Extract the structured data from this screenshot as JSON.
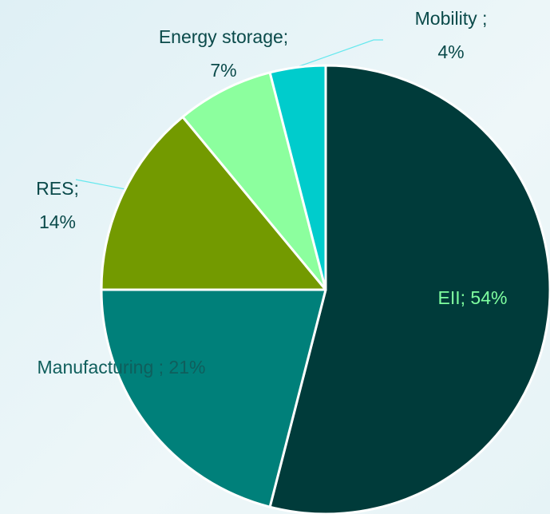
{
  "chart_data": {
    "type": "pie",
    "values": [
      54,
      21,
      14,
      7,
      4
    ],
    "value_labels": [
      "EII; 54%",
      "Manufacturing ; 21%",
      "RES;\n14%",
      "Energy storage;\n7%",
      "Mobility ;\n4%"
    ],
    "colors": [
      "#003b3a",
      "#00807a",
      "#739a00",
      "#8cff9e",
      "#00cccc"
    ]
  }
}
